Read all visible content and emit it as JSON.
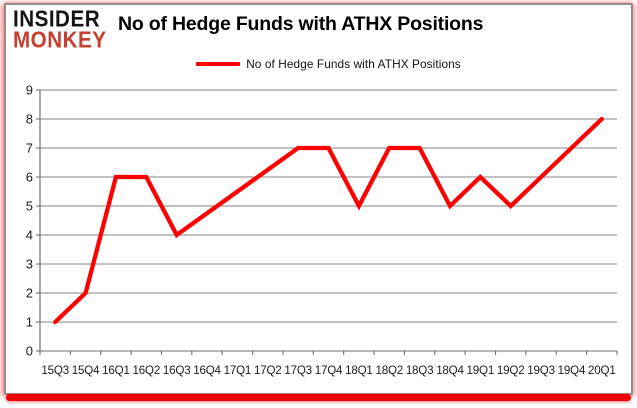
{
  "logo": {
    "line1": "INSIDER",
    "line2": "MONKEY",
    "line1_color": "#141414",
    "line2_color": "#c7402e"
  },
  "header": {
    "title": "No of Hedge Funds with ATHX Positions"
  },
  "legend": {
    "label": "No of Hedge Funds with ATHX Positions",
    "line_color": "#ff0000"
  },
  "colors": {
    "series_line": "#ff0000",
    "gridline": "#868686",
    "axis": "#6e6e6e",
    "tick_text": "#1c1c1c",
    "card_border": "#8f8f8f",
    "accent_bar": "#ee0202",
    "logo_red": "#c7402e"
  },
  "chart_data": {
    "type": "line",
    "title": "No of Hedge Funds with ATHX Positions",
    "categories": [
      "15Q3",
      "15Q4",
      "16Q1",
      "16Q2",
      "16Q3",
      "16Q4",
      "17Q1",
      "17Q2",
      "17Q3",
      "17Q4",
      "18Q1",
      "18Q2",
      "18Q3",
      "18Q4",
      "19Q1",
      "19Q2",
      "19Q3",
      "19Q4",
      "20Q1"
    ],
    "series": [
      {
        "name": "No of Hedge Funds with ATHX Positions",
        "color": "#ff0000",
        "values": [
          1,
          2,
          6,
          6,
          4,
          4.75,
          5.5,
          6.25,
          7,
          7,
          5,
          7,
          7,
          5,
          6,
          5,
          6,
          7,
          8
        ]
      }
    ],
    "xlabel": "",
    "ylabel": "",
    "ylim": [
      0,
      9
    ],
    "yticks": [
      0,
      1,
      2,
      3,
      4,
      5,
      6,
      7,
      8,
      9
    ],
    "grid": true,
    "legend_position": "top-center"
  }
}
